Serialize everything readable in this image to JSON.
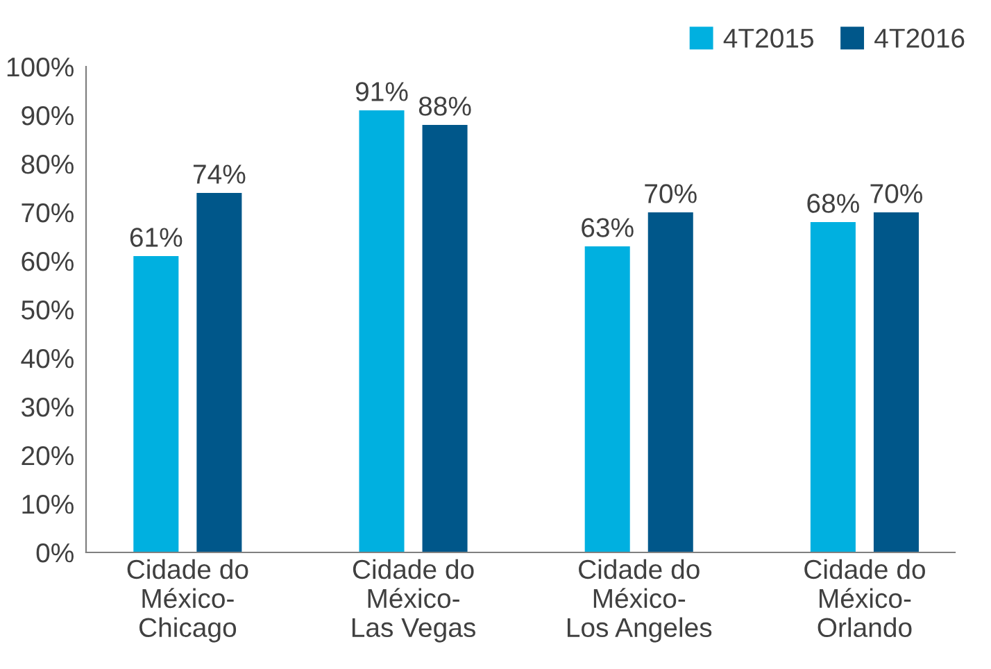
{
  "chart_data": {
    "type": "bar",
    "categories": [
      "Cidade do\nMéxico-\nChicago",
      "Cidade do\nMéxico-\nLas Vegas",
      "Cidade do\nMéxico-\nLos Angeles",
      "Cidade do\nMéxico-\nOrlando"
    ],
    "series": [
      {
        "name": "4T2015",
        "color": "#00b0e0",
        "values": [
          61,
          91,
          63,
          68
        ],
        "value_labels": [
          "61%",
          "91%",
          "63%",
          "68%"
        ]
      },
      {
        "name": "4T2016",
        "color": "#00578a",
        "values": [
          74,
          88,
          70,
          70
        ],
        "value_labels": [
          "74%",
          "88%",
          "70%",
          "70%"
        ]
      }
    ],
    "ylim": [
      0,
      100
    ],
    "yticks": [
      {
        "value": 0,
        "label": "0%"
      },
      {
        "value": 10,
        "label": "10%"
      },
      {
        "value": 20,
        "label": "20%"
      },
      {
        "value": 30,
        "label": "30%"
      },
      {
        "value": 40,
        "label": "40%"
      },
      {
        "value": 50,
        "label": "50%"
      },
      {
        "value": 60,
        "label": "60%"
      },
      {
        "value": 70,
        "label": "70%"
      },
      {
        "value": 80,
        "label": "80%"
      },
      {
        "value": 90,
        "label": "90%"
      },
      {
        "value": 100,
        "label": "100%"
      }
    ],
    "legend": "top right",
    "grid": false
  }
}
